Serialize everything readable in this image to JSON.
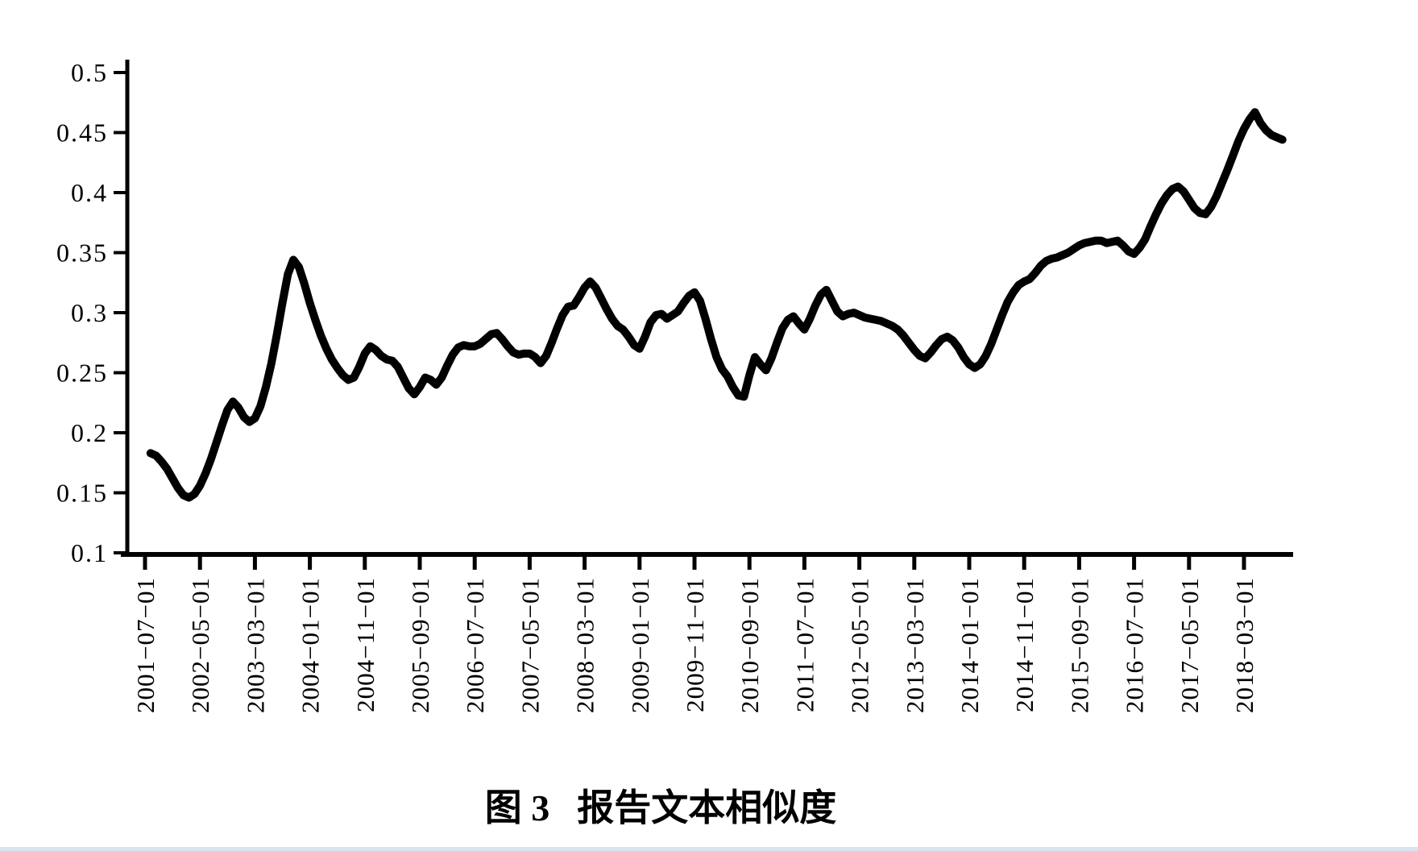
{
  "figure": {
    "caption": {
      "prefix": "图 3",
      "title": "报告文本相似度"
    }
  },
  "colors": {
    "line": "#000000",
    "axis": "#000000",
    "background": "#ffffff",
    "bottom_strip": "#d8e4f0"
  },
  "chart_data": {
    "type": "line",
    "title": "图 3 报告文本相似度",
    "xlabel": "",
    "ylabel": "",
    "ylim": [
      0.1,
      0.5
    ],
    "y_tick_step": 0.05,
    "grid": false,
    "legend_position": "none",
    "y_tick_labels": [
      "0.5",
      "0.45",
      "0.4",
      "0.35",
      "0.3",
      "0.25",
      "0.2",
      "0.15",
      "0.1"
    ],
    "x_tick_labels": [
      "2001−07−01",
      "2002−05−01",
      "2003−03−01",
      "2004−01−01",
      "2004−11−01",
      "2005−09−01",
      "2006−07−01",
      "2007−05−01",
      "2008−03−01",
      "2009−01−01",
      "2009−11−01",
      "2010−09−01",
      "2011−07−01",
      "2012−05−01",
      "2013−03−01",
      "2014−01−01",
      "2014−11−01",
      "2015−09−01",
      "2016−07−01",
      "2017−05−01",
      "2018−03−01"
    ],
    "x_tick_interval_months": 10,
    "series": [
      {
        "name": "报告文本相似度",
        "start": "2001-08",
        "frequency": "monthly",
        "values": [
          0.183,
          0.181,
          0.176,
          0.17,
          0.162,
          0.154,
          0.148,
          0.146,
          0.149,
          0.156,
          0.166,
          0.178,
          0.192,
          0.206,
          0.219,
          0.226,
          0.221,
          0.213,
          0.209,
          0.212,
          0.222,
          0.238,
          0.258,
          0.282,
          0.308,
          0.332,
          0.344,
          0.338,
          0.324,
          0.308,
          0.294,
          0.281,
          0.27,
          0.261,
          0.254,
          0.248,
          0.244,
          0.246,
          0.255,
          0.266,
          0.272,
          0.269,
          0.264,
          0.261,
          0.26,
          0.255,
          0.246,
          0.237,
          0.232,
          0.238,
          0.246,
          0.244,
          0.24,
          0.246,
          0.256,
          0.265,
          0.271,
          0.273,
          0.272,
          0.272,
          0.274,
          0.278,
          0.282,
          0.283,
          0.278,
          0.272,
          0.267,
          0.265,
          0.266,
          0.266,
          0.263,
          0.258,
          0.264,
          0.275,
          0.287,
          0.298,
          0.305,
          0.306,
          0.313,
          0.321,
          0.326,
          0.321,
          0.312,
          0.303,
          0.295,
          0.289,
          0.286,
          0.28,
          0.273,
          0.27,
          0.28,
          0.292,
          0.298,
          0.299,
          0.295,
          0.298,
          0.301,
          0.308,
          0.314,
          0.317,
          0.31,
          0.295,
          0.278,
          0.263,
          0.253,
          0.247,
          0.238,
          0.231,
          0.23,
          0.248,
          0.263,
          0.257,
          0.252,
          0.262,
          0.275,
          0.287,
          0.294,
          0.297,
          0.291,
          0.286,
          0.295,
          0.306,
          0.315,
          0.319,
          0.31,
          0.301,
          0.297,
          0.299,
          0.3,
          0.298,
          0.296,
          0.295,
          0.294,
          0.293,
          0.291,
          0.289,
          0.286,
          0.281,
          0.275,
          0.269,
          0.264,
          0.262,
          0.267,
          0.273,
          0.278,
          0.28,
          0.277,
          0.271,
          0.263,
          0.257,
          0.254,
          0.257,
          0.264,
          0.274,
          0.286,
          0.298,
          0.309,
          0.317,
          0.323,
          0.326,
          0.328,
          0.333,
          0.339,
          0.343,
          0.345,
          0.346,
          0.348,
          0.35,
          0.353,
          0.356,
          0.358,
          0.359,
          0.36,
          0.36,
          0.358,
          0.359,
          0.36,
          0.356,
          0.351,
          0.349,
          0.354,
          0.361,
          0.372,
          0.382,
          0.391,
          0.398,
          0.403,
          0.405,
          0.401,
          0.394,
          0.387,
          0.383,
          0.382,
          0.388,
          0.397,
          0.408,
          0.419,
          0.431,
          0.443,
          0.453,
          0.461,
          0.467,
          0.458,
          0.452,
          0.448,
          0.446,
          0.444
        ]
      }
    ]
  }
}
